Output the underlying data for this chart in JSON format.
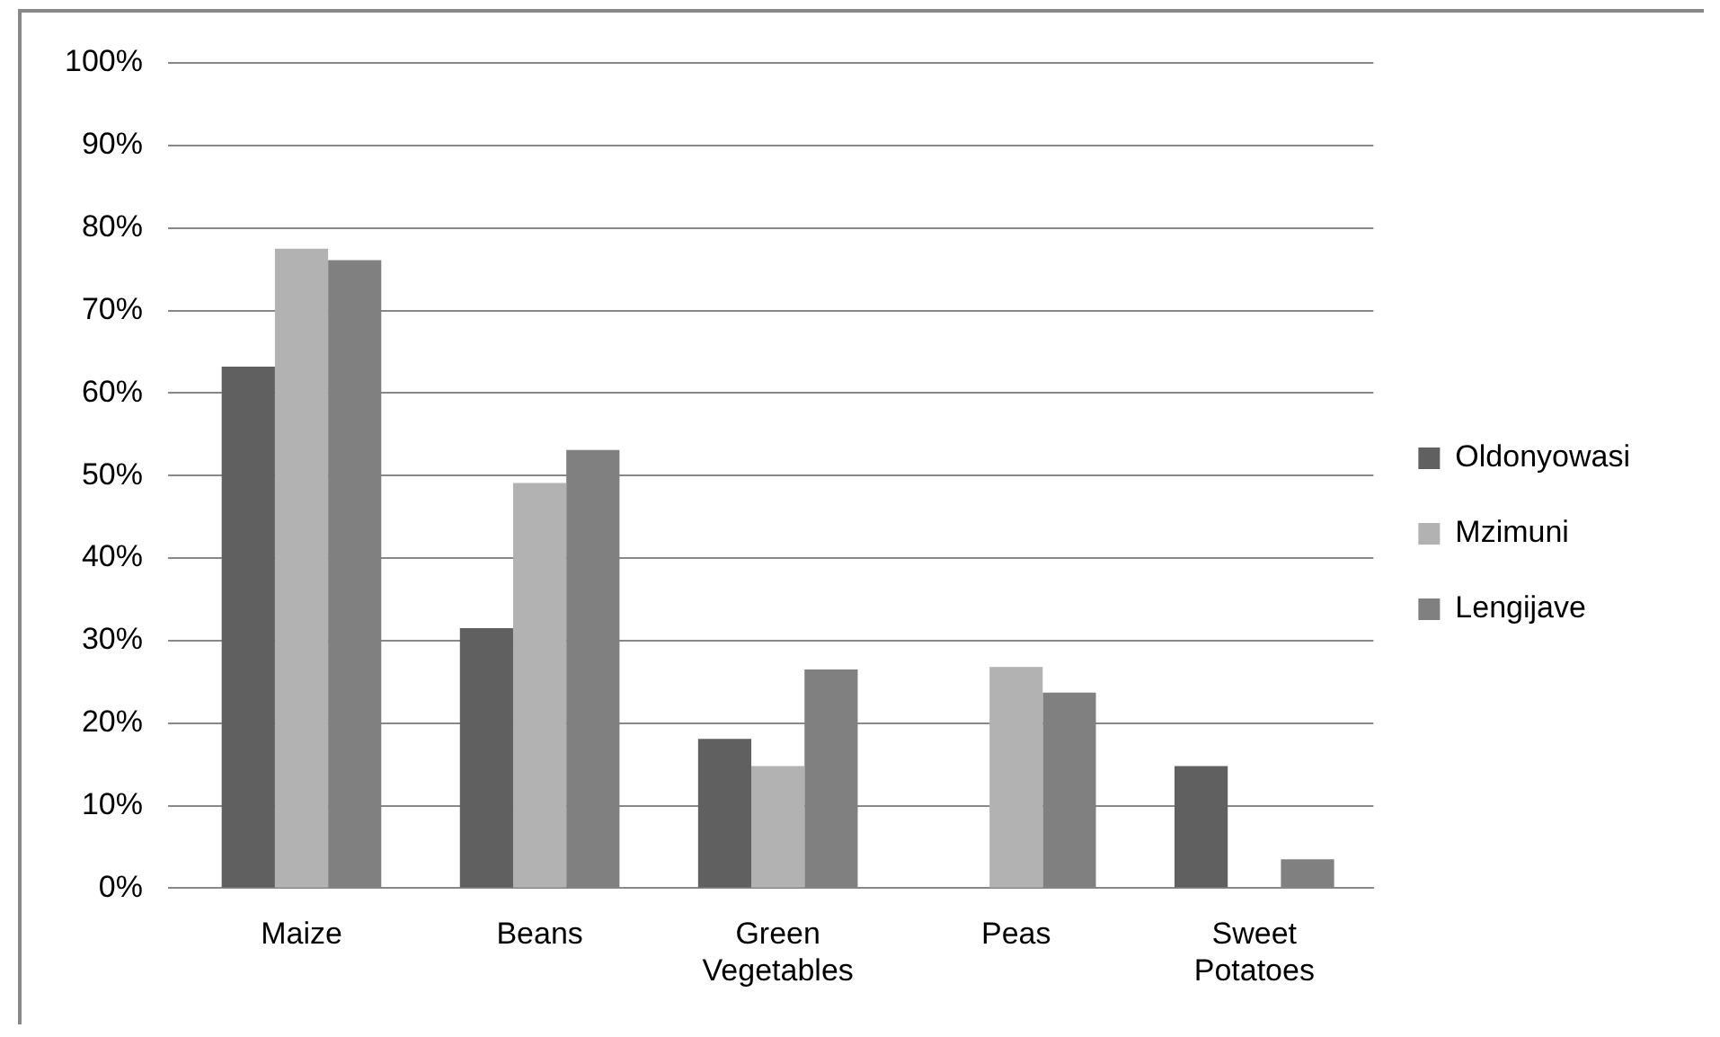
{
  "chart_data": {
    "type": "bar",
    "categories": [
      "Maize",
      "Beans",
      "Green Vegetables",
      "Peas",
      "Sweet Potatoes"
    ],
    "series": [
      {
        "name": "Oldonyowasi",
        "color": "#606060",
        "values": [
          63.2,
          31.5,
          18.1,
          0,
          14.8
        ]
      },
      {
        "name": "Mzimuni",
        "color": "#b2b2b2",
        "values": [
          77.5,
          49.1,
          14.8,
          26.8,
          0
        ]
      },
      {
        "name": "Lengijave",
        "color": "#808080",
        "values": [
          76.1,
          53.1,
          26.5,
          23.7,
          3.5
        ]
      }
    ],
    "ylim": [
      0,
      100
    ],
    "yticks": [
      {
        "value": 0,
        "label": "0%"
      },
      {
        "value": 10,
        "label": "10%"
      },
      {
        "value": 20,
        "label": "20%"
      },
      {
        "value": 30,
        "label": "30%"
      },
      {
        "value": 40,
        "label": "40%"
      },
      {
        "value": 50,
        "label": "50%"
      },
      {
        "value": 60,
        "label": "60%"
      },
      {
        "value": 70,
        "label": "70%"
      },
      {
        "value": 80,
        "label": "80%"
      },
      {
        "value": 90,
        "label": "90%"
      },
      {
        "value": 100,
        "label": "100%"
      }
    ],
    "grid": "y",
    "legend": "right"
  }
}
